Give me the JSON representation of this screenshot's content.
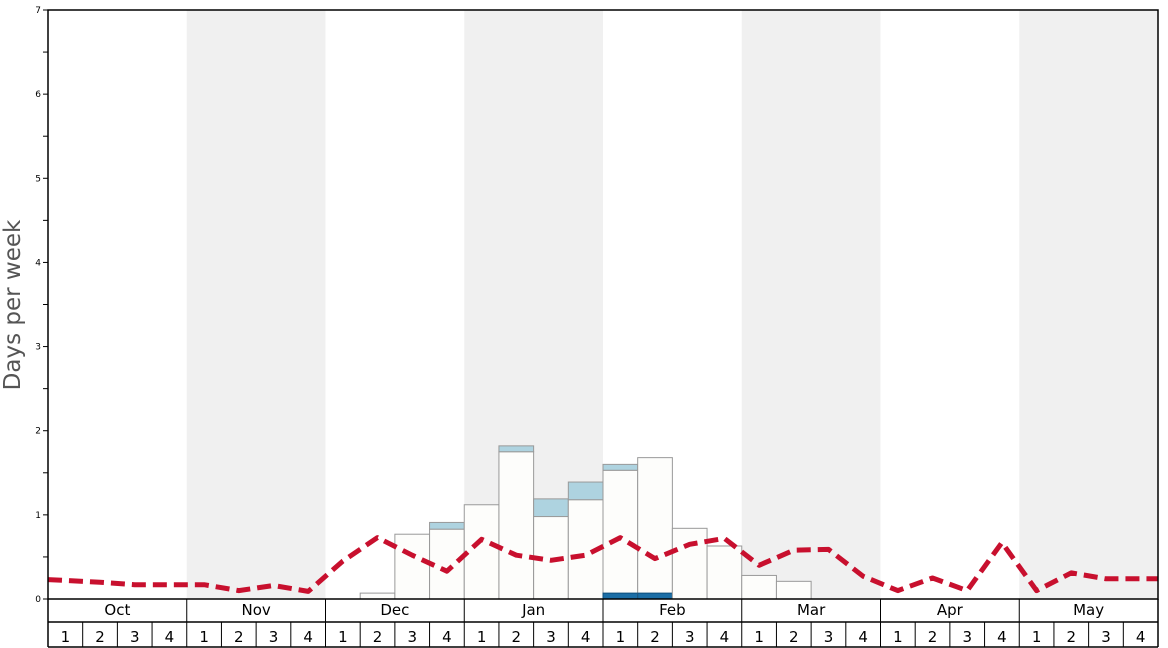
{
  "chart_data": {
    "type": "bar",
    "title": "",
    "ylabel": "Days per week",
    "xlabel": "",
    "ylim": [
      0,
      7
    ],
    "y_tick_labels": [
      "0",
      "1",
      "2",
      "3",
      "4",
      "5",
      "6",
      "7"
    ],
    "months": [
      "Oct",
      "Nov",
      "Dec",
      "Jan",
      "Feb",
      "Mar",
      "Apr",
      "May"
    ],
    "weeks_per_month": [
      "1",
      "2",
      "3",
      "4"
    ],
    "alternating_month_shading": true,
    "colors": {
      "base_bar": "#fdfdfb",
      "bar_stroke": "#999999",
      "light_stack": "#aed3e0",
      "dark_stack": "#1b6ea6",
      "average_line": "#c8102e",
      "shade": "#f0f0f0"
    },
    "series": [
      {
        "values": [
          0,
          0,
          0,
          0,
          0,
          0,
          0,
          0,
          0,
          0.07,
          0.77,
          0.83,
          1.12,
          1.75,
          0.98,
          1.18,
          1.53,
          1.68,
          0.84,
          0.63,
          0.28,
          0.21,
          0,
          0,
          0,
          0,
          0,
          0,
          0,
          0,
          0,
          0
        ]
      },
      {
        "values": [
          0,
          0,
          0,
          0,
          0,
          0,
          0,
          0,
          0,
          0,
          0,
          0.08,
          0,
          0.07,
          0.21,
          0.21,
          0.07,
          0,
          0,
          0,
          0,
          0,
          0,
          0,
          0,
          0,
          0,
          0,
          0,
          0,
          0,
          0
        ]
      },
      {
        "values": [
          0,
          0,
          0,
          0,
          0,
          0,
          0,
          0,
          0,
          0,
          0,
          0,
          0,
          0,
          0,
          0,
          0.07,
          0.07,
          0,
          0,
          0,
          0,
          0,
          0,
          0,
          0,
          0,
          0,
          0,
          0,
          0,
          0
        ]
      },
      {
        "type": "line",
        "style": "dashed",
        "values": [
          0.23,
          0.2,
          0.17,
          0.17,
          0.17,
          0.1,
          0.16,
          0.09,
          0.45,
          0.73,
          0.52,
          0.33,
          0.71,
          0.52,
          0.46,
          0.52,
          0.73,
          0.48,
          0.65,
          0.72,
          0.4,
          0.58,
          0.59,
          0.27,
          0.1,
          0.25,
          0.1,
          0.67,
          0.1,
          0.31,
          0.24,
          0.24
        ]
      }
    ]
  }
}
